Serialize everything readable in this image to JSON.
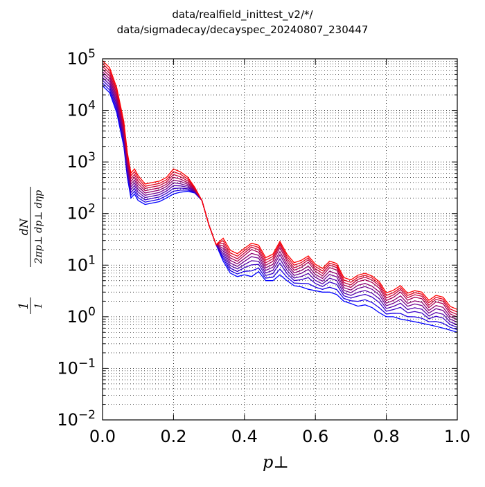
{
  "chart_data": {
    "type": "line",
    "title_lines": [
      "data/realfield_inittest_v2/*/",
      "data/sigmadecay/decayspec_20240807_230447"
    ],
    "xlabel": "p⊥",
    "ylabel_numerator": "1",
    "ylabel_fraction_top": "dN",
    "ylabel_denominator": "2πp⊥ dp⊥ dηp",
    "x_ticks": [
      "0.0",
      "0.2",
      "0.4",
      "0.6",
      "0.8",
      "1.0"
    ],
    "y_ticks": [
      {
        "base": "10",
        "exp": "5"
      },
      {
        "base": "10",
        "exp": "4"
      },
      {
        "base": "10",
        "exp": "3"
      },
      {
        "base": "10",
        "exp": "2"
      },
      {
        "base": "10",
        "exp": "1"
      },
      {
        "base": "10",
        "exp": "0"
      },
      {
        "base": "10",
        "exp": "−1"
      },
      {
        "base": "10",
        "exp": "−2"
      }
    ],
    "xlim": [
      0.0,
      1.0
    ],
    "ylim": [
      0.01,
      100000
    ],
    "yscale": "log",
    "grid": true,
    "legend": "none",
    "color_start": "#0000ff",
    "color_end": "#ff0000",
    "base_curve": {
      "x": [
        0.0,
        0.02,
        0.04,
        0.06,
        0.07,
        0.08,
        0.09,
        0.1,
        0.12,
        0.14,
        0.16,
        0.18,
        0.2,
        0.22,
        0.24,
        0.26,
        0.28,
        0.3,
        0.32,
        0.34,
        0.36,
        0.38,
        0.4,
        0.42,
        0.44,
        0.46,
        0.48,
        0.5,
        0.52,
        0.54,
        0.56,
        0.58,
        0.6,
        0.62,
        0.64,
        0.66,
        0.68,
        0.7,
        0.72,
        0.74,
        0.76,
        0.78,
        0.8,
        0.82,
        0.84,
        0.86,
        0.88,
        0.9,
        0.92,
        0.94,
        0.96,
        0.98,
        1.0
      ],
      "y": [
        30000,
        22000,
        9000,
        2000,
        500,
        200,
        240,
        180,
        150,
        160,
        170,
        200,
        240,
        260,
        270,
        250,
        180,
        60,
        25,
        12,
        7,
        6,
        6.5,
        6,
        7.5,
        5,
        5,
        6.5,
        5,
        4,
        3.8,
        3.4,
        3.2,
        3.0,
        3.0,
        2.7,
        2.0,
        1.8,
        1.6,
        1.7,
        1.5,
        1.2,
        1.0,
        1.0,
        0.9,
        0.85,
        0.8,
        0.75,
        0.7,
        0.65,
        0.6,
        0.55,
        0.5
      ]
    },
    "series": [
      {
        "scale": [
          1.0,
          1.0,
          1.0
        ]
      },
      {
        "scale": [
          1.13,
          1.12,
          1.1
        ]
      },
      {
        "scale": [
          1.28,
          1.25,
          1.21
        ]
      },
      {
        "scale": [
          1.45,
          1.4,
          1.33
        ]
      },
      {
        "scale": [
          1.64,
          1.57,
          1.46
        ]
      },
      {
        "scale": [
          1.86,
          1.76,
          1.61
        ]
      },
      {
        "scale": [
          2.1,
          1.97,
          1.77
        ]
      },
      {
        "scale": [
          2.38,
          2.2,
          1.95
        ]
      },
      {
        "scale": [
          2.7,
          2.47,
          2.14
        ]
      },
      {
        "scale": [
          3.05,
          2.77,
          2.36
        ]
      }
    ],
    "oscillations": {
      "peaks_x": [
        0.42,
        0.5,
        0.58,
        0.65,
        0.73,
        0.77,
        0.84,
        0.89,
        0.95
      ],
      "amplitude": [
        0.0,
        0.15,
        0.35,
        0.45,
        0.55,
        0.6,
        0.7,
        0.7,
        0.65,
        0.6
      ]
    }
  }
}
